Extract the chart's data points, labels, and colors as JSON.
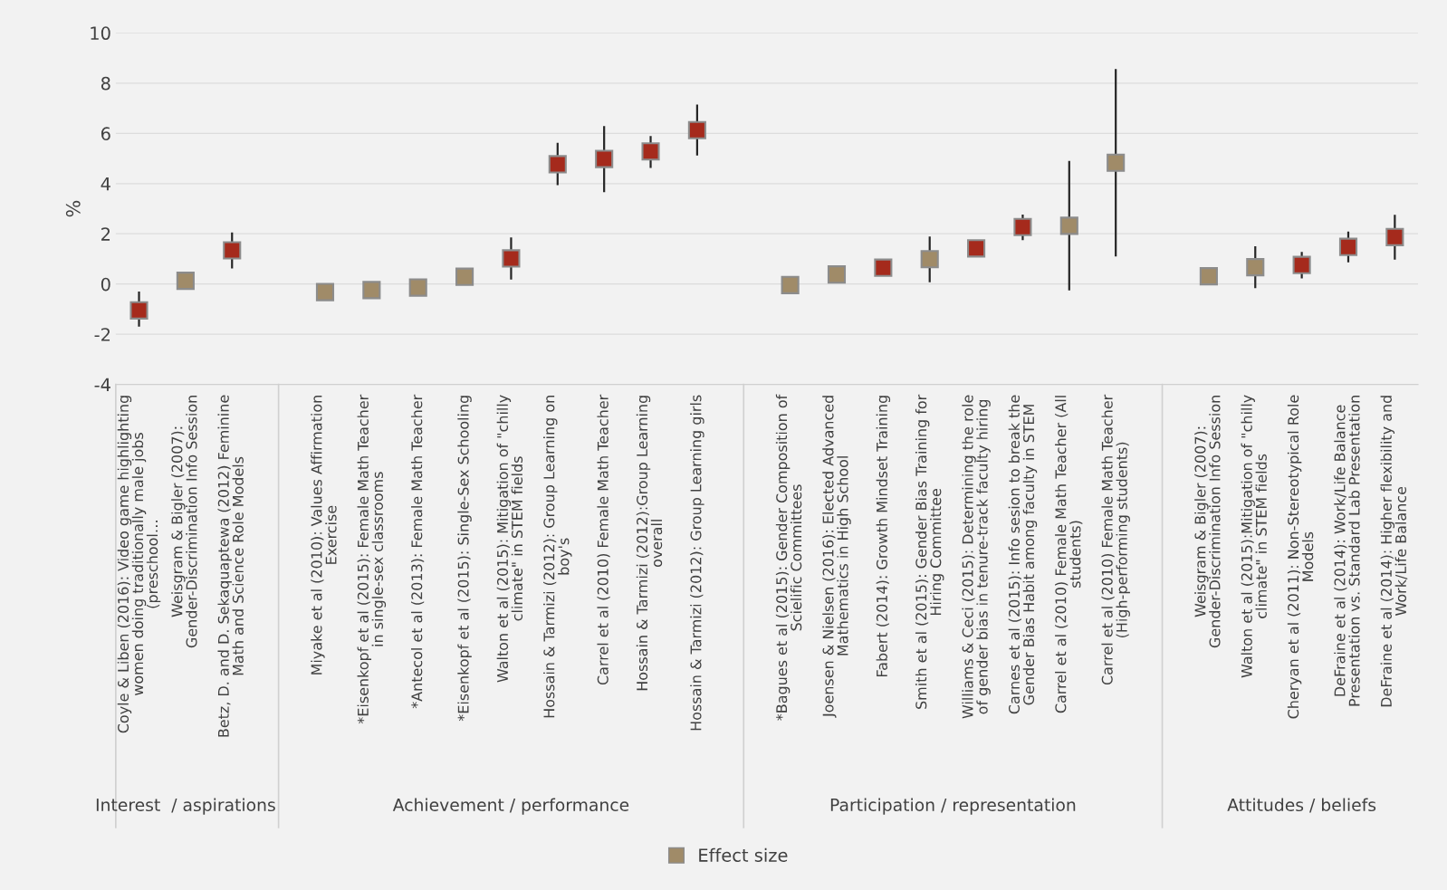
{
  "chart_data": {
    "type": "scatter",
    "ylabel": "%",
    "categories": [
      "Coyle & Liben (2016): Video game highlighting women doing traditionally male jobs (preschool…",
      "Weisgram & Bigler (2007): Gender-Discrimination Info Session",
      "Betz, D. and D. Sekaquaptewa (2012) Feminine Math and Science Role Models",
      null,
      "Miyake et al (2010): Values Affirmation Exercise",
      "*Eisenkopf et al (2015): Female Math Teacher in single-sex classrooms",
      "*Antecol et al (2013): Female Math Teacher",
      "*Eisenkopf et al (2015): Single-Sex Schooling",
      "Walton et al (2015): Mitigation of \"chilly climate\" in STEM fields",
      "Hossain & Tarmizi (2012): Group Learning on boy's",
      "Carrel et al (2010) Female Math Teacher",
      "Hossain & Tarmizi (2012):Group Learning overall",
      "Hossain & Tarmizi (2012): Group Learning girls",
      null,
      "*Bagues et al (2015): Gender Composition of Scielific Committees",
      "Joensen & Nielsen (2016): Elected Advanced Mathematics in High School",
      "Fabert (2014): Growth Mindset Training",
      "Smith et al (2015): Gender Bias Training for Hiring Committee",
      "Williams & Ceci (2015): Determining the role of gender bias in tenure-track faculty hiring",
      "Carnes et al (2015): Info sesion to break the Gender Bias Habit among faculty in STEM",
      "Carrel et al (2010) Female Math Teacher (All students)",
      "Carrel et al (2010) Female Math Teacher (High-performing students)",
      null,
      "Weisgram & Bigler (2007): Gender-Discrimination Info Session",
      "Walton et al (2015):Mitigation of \"chilly climate\" in STEM fields",
      "Cheryan et al (2011): Non-Stereotypical Role Models",
      "DeFraine et al (2014): Work/Life Balance Presentation vs. Standard Lab Presentation",
      "DeFraine et al (2014): Higher flexibility and Work/Life Balance"
    ],
    "series": [
      {
        "name": "Effect size",
        "color": "#a08b68",
        "values": [
          -1.05,
          0.13,
          1.34,
          null,
          -0.32,
          -0.24,
          -0.14,
          0.29,
          1.02,
          4.77,
          4.98,
          5.28,
          6.13,
          null,
          -0.04,
          0.38,
          0.65,
          0.99,
          1.42,
          2.27,
          2.32,
          4.83,
          null,
          0.31,
          0.67,
          0.76,
          1.48,
          1.87
        ],
        "colors": [
          "#a52a1c",
          "#a08b68",
          "#a52a1c",
          null,
          "#a08b68",
          "#a08b68",
          "#a08b68",
          "#a08b68",
          "#a52a1c",
          "#a52a1c",
          "#a52a1c",
          "#a52a1c",
          "#a52a1c",
          null,
          "#a08b68",
          "#a08b68",
          "#a52a1c",
          "#a08b68",
          "#a52a1c",
          "#a52a1c",
          "#a08b68",
          "#a08b68",
          null,
          "#a08b68",
          "#a08b68",
          "#a52a1c",
          "#a52a1c",
          "#a52a1c"
        ],
        "errors": [
          [
            -1.7,
            -0.3
          ],
          [
            -0.19,
            0.43
          ],
          [
            0.62,
            2.05
          ],
          null,
          null,
          null,
          null,
          null,
          [
            0.18,
            1.86
          ],
          [
            3.94,
            5.62
          ],
          [
            3.66,
            6.29
          ],
          [
            4.62,
            5.89
          ],
          [
            5.12,
            7.15
          ],
          null,
          null,
          null,
          [
            0.32,
            0.9
          ],
          [
            0.07,
            1.89
          ],
          null,
          [
            1.75,
            2.77
          ],
          [
            -0.25,
            4.9
          ],
          [
            1.1,
            8.56
          ],
          null,
          [
            0.0,
            0.65
          ],
          [
            -0.16,
            1.5
          ],
          [
            0.22,
            1.28
          ],
          [
            0.86,
            2.09
          ],
          [
            0.97,
            2.76
          ]
        ]
      }
    ],
    "annotations": [
      "Interest  / aspirations",
      "Achievement / performance",
      "Participation / representation",
      "Attitudes / beliefs"
    ],
    "ylim": [
      -4,
      10
    ],
    "yticks": [
      -4,
      -2,
      0,
      2,
      4,
      6,
      8,
      10
    ],
    "grid": "y",
    "legend": "bottom",
    "marker": "square"
  }
}
